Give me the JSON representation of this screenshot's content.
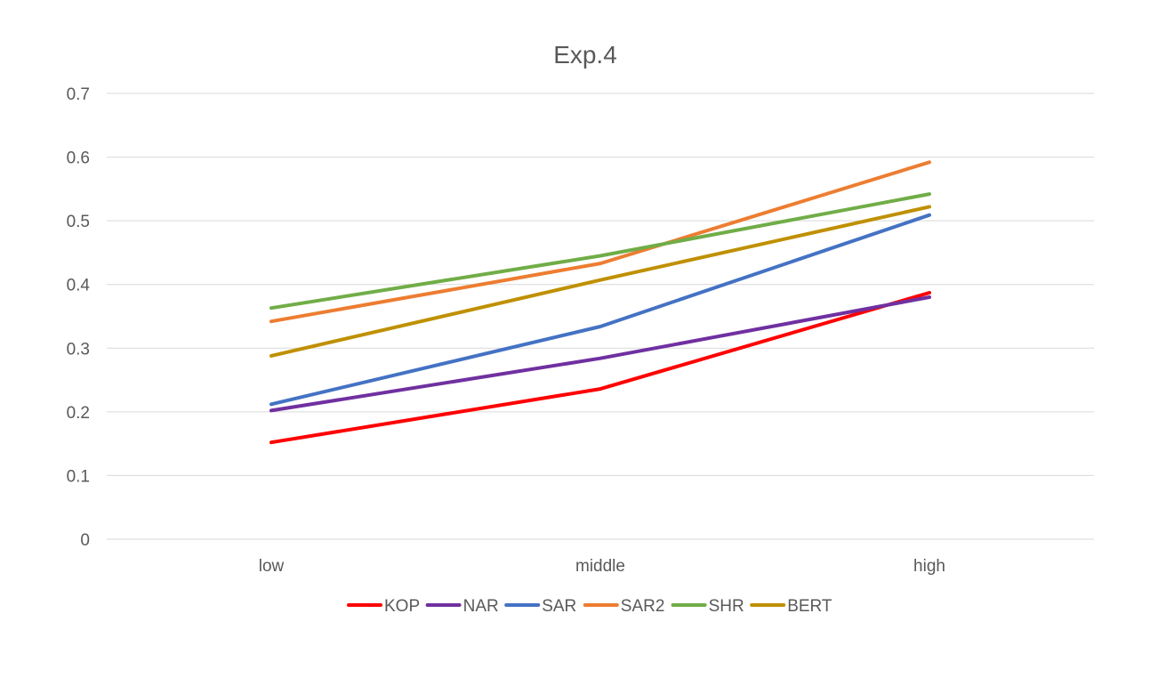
{
  "chart_data": {
    "type": "line",
    "title": "Exp.4",
    "xlabel": "",
    "ylabel": "",
    "categories": [
      "low",
      "middle",
      "high"
    ],
    "ylim": [
      0,
      0.7
    ],
    "yticks": [
      "0",
      "0.1",
      "0.2",
      "0.3",
      "0.4",
      "0.5",
      "0.6",
      "0.7"
    ],
    "grid": true,
    "legend_position": "bottom",
    "series": [
      {
        "name": "KOP",
        "color": "#FF0000",
        "values": [
          0.152,
          0.236,
          0.387
        ]
      },
      {
        "name": "NAR",
        "color": "#7030A0",
        "values": [
          0.202,
          0.284,
          0.38
        ]
      },
      {
        "name": "SAR",
        "color": "#4472C4",
        "values": [
          0.212,
          0.334,
          0.509
        ]
      },
      {
        "name": "SAR2",
        "color": "#ED7D31",
        "values": [
          0.342,
          0.433,
          0.592
        ]
      },
      {
        "name": "SHR",
        "color": "#70AD47",
        "values": [
          0.363,
          0.445,
          0.542
        ]
      },
      {
        "name": "BERT",
        "color": "#BF9000",
        "values": [
          0.288,
          0.407,
          0.522
        ]
      }
    ]
  }
}
